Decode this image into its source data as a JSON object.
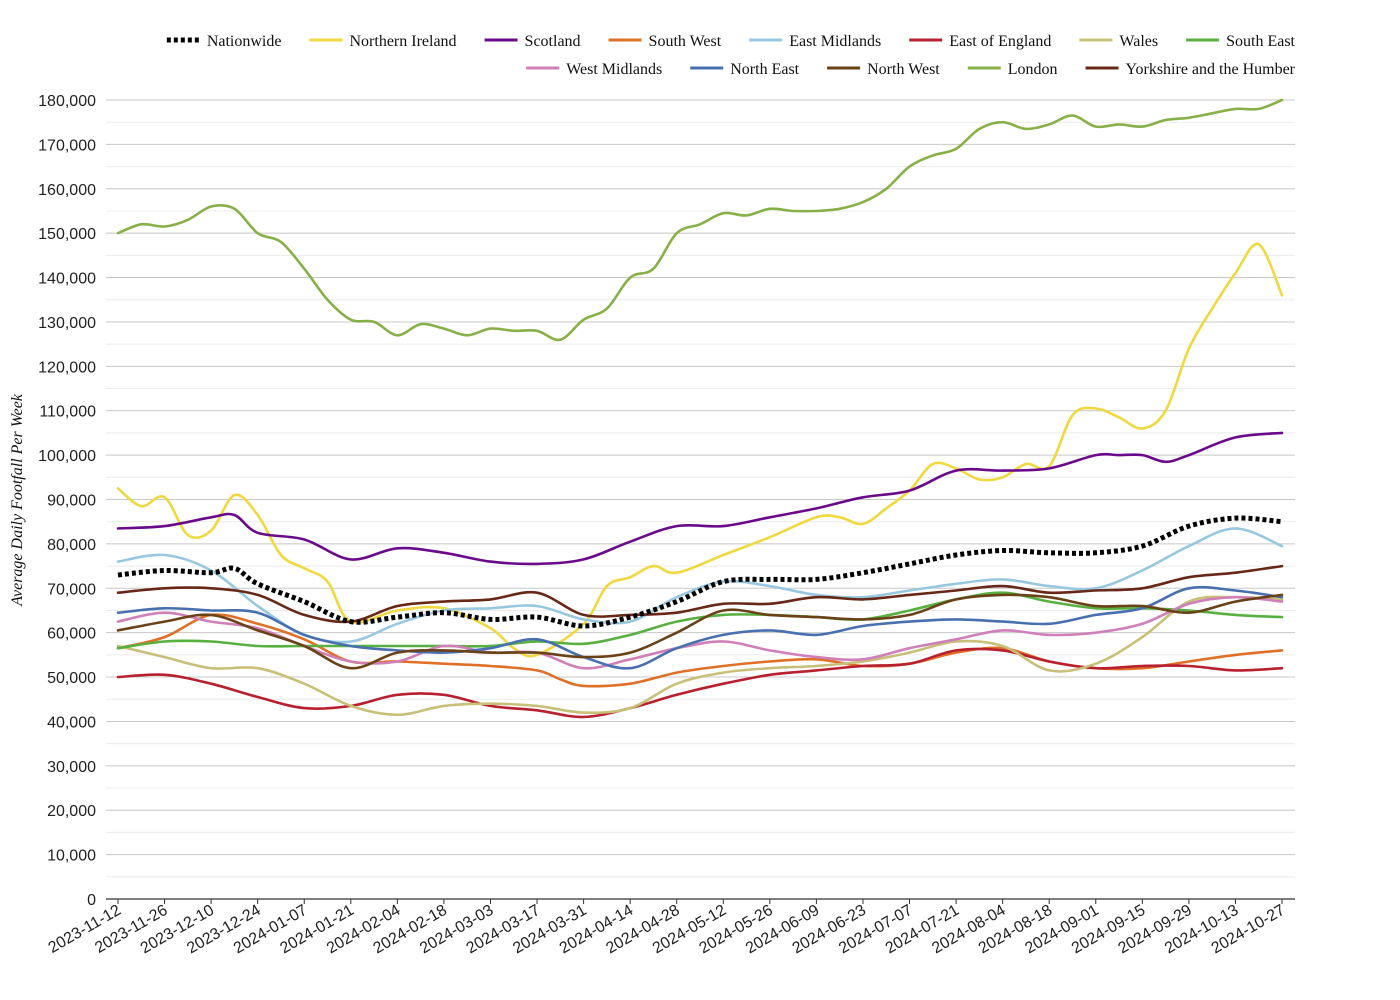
{
  "chart_data": {
    "type": "line",
    "title": "",
    "xlabel": "",
    "ylabel": "Average Daily Footfall Per Week",
    "ylim": [
      0,
      180000
    ],
    "ytick_step": 10000,
    "grid": "horizontal",
    "legend_position": "top",
    "x_start": "2023-11-12",
    "x_end": "2024-10-27",
    "x_tick_labels": [
      "2023-11-12",
      "2023-11-26",
      "2023-12-10",
      "2023-12-24",
      "2024-01-07",
      "2024-01-21",
      "2024-02-04",
      "2024-02-18",
      "2024-03-03",
      "2024-03-17",
      "2024-03-31",
      "2024-04-14",
      "2024-04-28",
      "2024-05-12",
      "2024-05-26",
      "2024-06-09",
      "2024-06-23",
      "2024-07-07",
      "2024-07-21",
      "2024-08-04",
      "2024-08-18",
      "2024-09-01",
      "2024-09-15",
      "2024-09-29",
      "2024-10-13",
      "2024-10-27"
    ],
    "y_tick_labels": [
      "0",
      "10,000",
      "20,000",
      "30,000",
      "40,000",
      "50,000",
      "60,000",
      "70,000",
      "80,000",
      "90,000",
      "100,000",
      "110,000",
      "120,000",
      "130,000",
      "140,000",
      "150,000",
      "160,000",
      "170,000",
      "180,000"
    ],
    "series": [
      {
        "name": "Nationwide",
        "color": "#000000",
        "dashed": true,
        "x": [
          "2023-11-12",
          "2023-11-26",
          "2023-12-10",
          "2023-12-17",
          "2023-12-24",
          "2024-01-07",
          "2024-01-21",
          "2024-02-04",
          "2024-02-18",
          "2024-03-03",
          "2024-03-17",
          "2024-03-31",
          "2024-04-14",
          "2024-04-28",
          "2024-05-12",
          "2024-05-26",
          "2024-06-09",
          "2024-06-23",
          "2024-07-07",
          "2024-07-21",
          "2024-08-04",
          "2024-08-18",
          "2024-09-01",
          "2024-09-15",
          "2024-09-29",
          "2024-10-13",
          "2024-10-27"
        ],
        "y": [
          73000,
          74000,
          73500,
          74500,
          71000,
          67000,
          62500,
          63500,
          64500,
          63000,
          63500,
          61500,
          63500,
          67000,
          71500,
          72000,
          72000,
          73500,
          75500,
          77500,
          78500,
          78000,
          78000,
          79500,
          84000,
          85800,
          85000
        ]
      },
      {
        "name": "Northern Ireland",
        "color": "#f0d840",
        "x": [
          "2023-11-12",
          "2023-11-19",
          "2023-11-26",
          "2023-12-03",
          "2023-12-10",
          "2023-12-17",
          "2023-12-24",
          "2023-12-31",
          "2024-01-07",
          "2024-01-14",
          "2024-01-21",
          "2024-02-04",
          "2024-02-18",
          "2024-03-03",
          "2024-03-10",
          "2024-03-17",
          "2024-03-31",
          "2024-04-07",
          "2024-04-14",
          "2024-04-21",
          "2024-04-28",
          "2024-05-12",
          "2024-05-26",
          "2024-06-09",
          "2024-06-16",
          "2024-06-23",
          "2024-06-30",
          "2024-07-07",
          "2024-07-14",
          "2024-07-21",
          "2024-07-28",
          "2024-08-04",
          "2024-08-11",
          "2024-08-18",
          "2024-08-25",
          "2024-09-01",
          "2024-09-08",
          "2024-09-15",
          "2024-09-22",
          "2024-09-29",
          "2024-10-06",
          "2024-10-13",
          "2024-10-20",
          "2024-10-27"
        ],
        "y": [
          92500,
          88500,
          90500,
          82000,
          83000,
          91000,
          86500,
          77500,
          74500,
          71500,
          62500,
          65000,
          65500,
          61000,
          56500,
          55000,
          62000,
          70500,
          72500,
          75000,
          73500,
          77500,
          81500,
          86000,
          86000,
          84500,
          88000,
          92000,
          98000,
          97000,
          94500,
          95000,
          98000,
          97500,
          109000,
          110500,
          108500,
          106000,
          110000,
          124000,
          133000,
          141000,
          147500,
          136000
        ]
      },
      {
        "name": "Scotland",
        "color": "#6a0a8a",
        "x": [
          "2023-11-12",
          "2023-11-26",
          "2023-12-10",
          "2023-12-17",
          "2023-12-24",
          "2024-01-07",
          "2024-01-21",
          "2024-02-04",
          "2024-02-18",
          "2024-03-03",
          "2024-03-17",
          "2024-03-31",
          "2024-04-14",
          "2024-04-28",
          "2024-05-12",
          "2024-05-26",
          "2024-06-09",
          "2024-06-23",
          "2024-07-07",
          "2024-07-21",
          "2024-08-04",
          "2024-08-18",
          "2024-09-01",
          "2024-09-08",
          "2024-09-15",
          "2024-09-22",
          "2024-09-29",
          "2024-10-13",
          "2024-10-27"
        ],
        "y": [
          83500,
          84000,
          86000,
          86500,
          82500,
          81000,
          76500,
          79000,
          78000,
          76000,
          75500,
          76500,
          80500,
          84000,
          84000,
          86000,
          88000,
          90500,
          92000,
          96500,
          96500,
          97000,
          100000,
          100000,
          100000,
          98500,
          100000,
          104000,
          105000
        ]
      },
      {
        "name": "South West",
        "color": "#e07028",
        "x": [
          "2023-11-12",
          "2023-11-26",
          "2023-12-10",
          "2023-12-24",
          "2024-01-07",
          "2024-01-21",
          "2024-02-04",
          "2024-02-18",
          "2024-03-03",
          "2024-03-17",
          "2024-03-24",
          "2024-03-31",
          "2024-04-14",
          "2024-04-28",
          "2024-05-12",
          "2024-05-26",
          "2024-06-09",
          "2024-06-23",
          "2024-07-07",
          "2024-07-21",
          "2024-08-04",
          "2024-08-18",
          "2024-09-01",
          "2024-09-15",
          "2024-09-29",
          "2024-10-13",
          "2024-10-27"
        ],
        "y": [
          56500,
          59000,
          64000,
          62000,
          58500,
          53500,
          53500,
          53000,
          52500,
          51500,
          49500,
          48000,
          48500,
          51000,
          52500,
          53500,
          54000,
          52500,
          53000,
          55500,
          56500,
          53500,
          52000,
          52000,
          53500,
          55000,
          56000
        ]
      },
      {
        "name": "East Midlands",
        "color": "#98c8e0",
        "x": [
          "2023-11-12",
          "2023-11-26",
          "2023-12-10",
          "2023-12-24",
          "2024-01-07",
          "2024-01-21",
          "2024-02-04",
          "2024-02-18",
          "2024-03-03",
          "2024-03-17",
          "2024-03-31",
          "2024-04-14",
          "2024-04-28",
          "2024-05-12",
          "2024-05-26",
          "2024-06-09",
          "2024-06-23",
          "2024-07-07",
          "2024-07-21",
          "2024-08-04",
          "2024-08-18",
          "2024-09-01",
          "2024-09-15",
          "2024-09-29",
          "2024-10-13",
          "2024-10-27"
        ],
        "y": [
          76000,
          77500,
          74000,
          66000,
          59500,
          58000,
          62000,
          65000,
          65500,
          66000,
          63000,
          62500,
          68000,
          71500,
          70500,
          68500,
          68000,
          69500,
          71000,
          72000,
          70500,
          70000,
          74000,
          79500,
          83500,
          79500
        ]
      },
      {
        "name": "East of England",
        "color": "#b82030",
        "x": [
          "2023-11-12",
          "2023-11-26",
          "2023-12-10",
          "2023-12-24",
          "2024-01-07",
          "2024-01-21",
          "2024-02-04",
          "2024-02-18",
          "2024-03-03",
          "2024-03-17",
          "2024-03-31",
          "2024-04-14",
          "2024-04-28",
          "2024-05-12",
          "2024-05-26",
          "2024-06-09",
          "2024-06-23",
          "2024-07-07",
          "2024-07-21",
          "2024-08-04",
          "2024-08-18",
          "2024-09-01",
          "2024-09-15",
          "2024-09-29",
          "2024-10-13",
          "2024-10-27"
        ],
        "y": [
          50000,
          50500,
          48500,
          45500,
          43000,
          43500,
          46000,
          46000,
          43500,
          42500,
          41000,
          43000,
          46000,
          48500,
          50500,
          51500,
          52500,
          53000,
          56000,
          56000,
          53500,
          52000,
          52500,
          52500,
          51500,
          52000
        ]
      },
      {
        "name": "Wales",
        "color": "#c8c078",
        "x": [
          "2023-11-12",
          "2023-11-26",
          "2023-12-10",
          "2023-12-24",
          "2024-01-07",
          "2024-01-21",
          "2024-02-04",
          "2024-02-18",
          "2024-03-03",
          "2024-03-17",
          "2024-03-31",
          "2024-04-14",
          "2024-04-28",
          "2024-05-12",
          "2024-05-26",
          "2024-06-09",
          "2024-06-23",
          "2024-07-07",
          "2024-07-21",
          "2024-08-04",
          "2024-08-18",
          "2024-09-01",
          "2024-09-15",
          "2024-09-29",
          "2024-10-13",
          "2024-10-27"
        ],
        "y": [
          57000,
          54500,
          52000,
          52000,
          48500,
          43500,
          41500,
          43500,
          44000,
          43500,
          42000,
          43000,
          48500,
          51000,
          52000,
          52500,
          53500,
          55500,
          58000,
          57000,
          51500,
          53000,
          59000,
          67000,
          68000,
          67500
        ]
      },
      {
        "name": "South East",
        "color": "#58b040",
        "x": [
          "2023-11-12",
          "2023-11-26",
          "2023-12-10",
          "2023-12-24",
          "2024-01-07",
          "2024-01-21",
          "2024-02-04",
          "2024-02-18",
          "2024-03-03",
          "2024-03-17",
          "2024-03-31",
          "2024-04-14",
          "2024-04-28",
          "2024-05-12",
          "2024-05-26",
          "2024-06-09",
          "2024-06-23",
          "2024-07-07",
          "2024-07-21",
          "2024-08-04",
          "2024-08-18",
          "2024-09-01",
          "2024-09-15",
          "2024-09-29",
          "2024-10-13",
          "2024-10-27"
        ],
        "y": [
          56500,
          58000,
          58000,
          57000,
          57000,
          57000,
          57000,
          57000,
          57000,
          58000,
          57500,
          59500,
          62500,
          64000,
          64000,
          63500,
          63000,
          65000,
          67500,
          69000,
          67000,
          65500,
          65500,
          65000,
          64000,
          63500
        ]
      },
      {
        "name": "West Midlands",
        "color": "#d080b8",
        "x": [
          "2023-11-12",
          "2023-11-26",
          "2023-12-10",
          "2023-12-24",
          "2024-01-07",
          "2024-01-21",
          "2024-02-04",
          "2024-02-18",
          "2024-03-03",
          "2024-03-17",
          "2024-03-31",
          "2024-04-14",
          "2024-04-28",
          "2024-05-12",
          "2024-05-26",
          "2024-06-09",
          "2024-06-23",
          "2024-07-07",
          "2024-07-21",
          "2024-08-04",
          "2024-08-18",
          "2024-09-01",
          "2024-09-15",
          "2024-09-29",
          "2024-10-13",
          "2024-10-27"
        ],
        "y": [
          62500,
          64500,
          62500,
          61000,
          57000,
          53500,
          53500,
          57000,
          55500,
          55500,
          52000,
          54000,
          56500,
          58000,
          56000,
          54500,
          54000,
          56500,
          58500,
          60500,
          59500,
          60000,
          62000,
          66500,
          68000,
          67000
        ]
      },
      {
        "name": "North East",
        "color": "#4870b0",
        "x": [
          "2023-11-12",
          "2023-11-26",
          "2023-12-10",
          "2023-12-24",
          "2024-01-07",
          "2024-01-21",
          "2024-02-04",
          "2024-02-18",
          "2024-03-03",
          "2024-03-17",
          "2024-03-31",
          "2024-04-14",
          "2024-04-28",
          "2024-05-12",
          "2024-05-26",
          "2024-06-09",
          "2024-06-23",
          "2024-07-07",
          "2024-07-21",
          "2024-08-04",
          "2024-08-18",
          "2024-09-01",
          "2024-09-15",
          "2024-09-29",
          "2024-10-13",
          "2024-10-27"
        ],
        "y": [
          64500,
          65500,
          65000,
          64500,
          59500,
          57000,
          56000,
          55500,
          56500,
          58500,
          54500,
          52000,
          56500,
          59500,
          60500,
          59500,
          61500,
          62500,
          63000,
          62500,
          62000,
          64000,
          65500,
          70000,
          69500,
          68000
        ]
      },
      {
        "name": "North West",
        "color": "#6a4218",
        "x": [
          "2023-11-12",
          "2023-11-26",
          "2023-12-10",
          "2023-12-24",
          "2024-01-07",
          "2024-01-21",
          "2024-02-04",
          "2024-02-18",
          "2024-03-03",
          "2024-03-17",
          "2024-03-31",
          "2024-04-14",
          "2024-04-28",
          "2024-05-12",
          "2024-05-26",
          "2024-06-09",
          "2024-06-23",
          "2024-07-07",
          "2024-07-21",
          "2024-08-04",
          "2024-08-18",
          "2024-09-01",
          "2024-09-15",
          "2024-09-29",
          "2024-10-13",
          "2024-10-27"
        ],
        "y": [
          60500,
          62500,
          64000,
          60500,
          57000,
          52000,
          55500,
          56000,
          55500,
          55500,
          54500,
          55500,
          60000,
          65000,
          64000,
          63500,
          63000,
          64000,
          67500,
          68500,
          68000,
          66000,
          66000,
          64500,
          67000,
          68500
        ]
      },
      {
        "name": "London",
        "color": "#88b048",
        "x": [
          "2023-11-12",
          "2023-11-19",
          "2023-11-26",
          "2023-12-03",
          "2023-12-10",
          "2023-12-17",
          "2023-12-24",
          "2023-12-31",
          "2024-01-07",
          "2024-01-14",
          "2024-01-21",
          "2024-01-28",
          "2024-02-04",
          "2024-02-11",
          "2024-02-18",
          "2024-02-25",
          "2024-03-03",
          "2024-03-10",
          "2024-03-17",
          "2024-03-24",
          "2024-03-31",
          "2024-04-07",
          "2024-04-14",
          "2024-04-21",
          "2024-04-28",
          "2024-05-05",
          "2024-05-12",
          "2024-05-19",
          "2024-05-26",
          "2024-06-02",
          "2024-06-09",
          "2024-06-16",
          "2024-06-23",
          "2024-06-30",
          "2024-07-07",
          "2024-07-14",
          "2024-07-21",
          "2024-07-28",
          "2024-08-04",
          "2024-08-11",
          "2024-08-18",
          "2024-08-25",
          "2024-09-01",
          "2024-09-08",
          "2024-09-15",
          "2024-09-22",
          "2024-09-29",
          "2024-10-06",
          "2024-10-13",
          "2024-10-20",
          "2024-10-27"
        ],
        "y": [
          150000,
          152000,
          151500,
          153000,
          156000,
          155500,
          150000,
          148000,
          142000,
          135000,
          130500,
          130000,
          127000,
          129500,
          128500,
          127000,
          128500,
          128000,
          128000,
          126000,
          130500,
          133000,
          140000,
          142000,
          150000,
          152000,
          154500,
          154000,
          155500,
          155000,
          155000,
          155500,
          157000,
          160000,
          165000,
          167500,
          169000,
          173500,
          175000,
          173500,
          174500,
          176500,
          174000,
          174500,
          174000,
          175500,
          176000,
          177000,
          178000,
          178000,
          180000
        ]
      },
      {
        "name": "Yorkshire and the Humber",
        "color": "#682818",
        "x": [
          "2023-11-12",
          "2023-11-26",
          "2023-12-10",
          "2023-12-24",
          "2024-01-07",
          "2024-01-21",
          "2024-02-04",
          "2024-02-18",
          "2024-03-03",
          "2024-03-17",
          "2024-03-31",
          "2024-04-14",
          "2024-04-28",
          "2024-05-12",
          "2024-05-26",
          "2024-06-09",
          "2024-06-23",
          "2024-07-07",
          "2024-07-21",
          "2024-08-04",
          "2024-08-18",
          "2024-09-01",
          "2024-09-15",
          "2024-09-29",
          "2024-10-13",
          "2024-10-27"
        ],
        "y": [
          69000,
          70000,
          70000,
          68500,
          64000,
          62500,
          66000,
          67000,
          67500,
          69000,
          64000,
          64000,
          64500,
          66500,
          66500,
          68000,
          67500,
          68500,
          69500,
          70500,
          69000,
          69500,
          70000,
          72500,
          73500,
          75000
        ]
      }
    ]
  }
}
